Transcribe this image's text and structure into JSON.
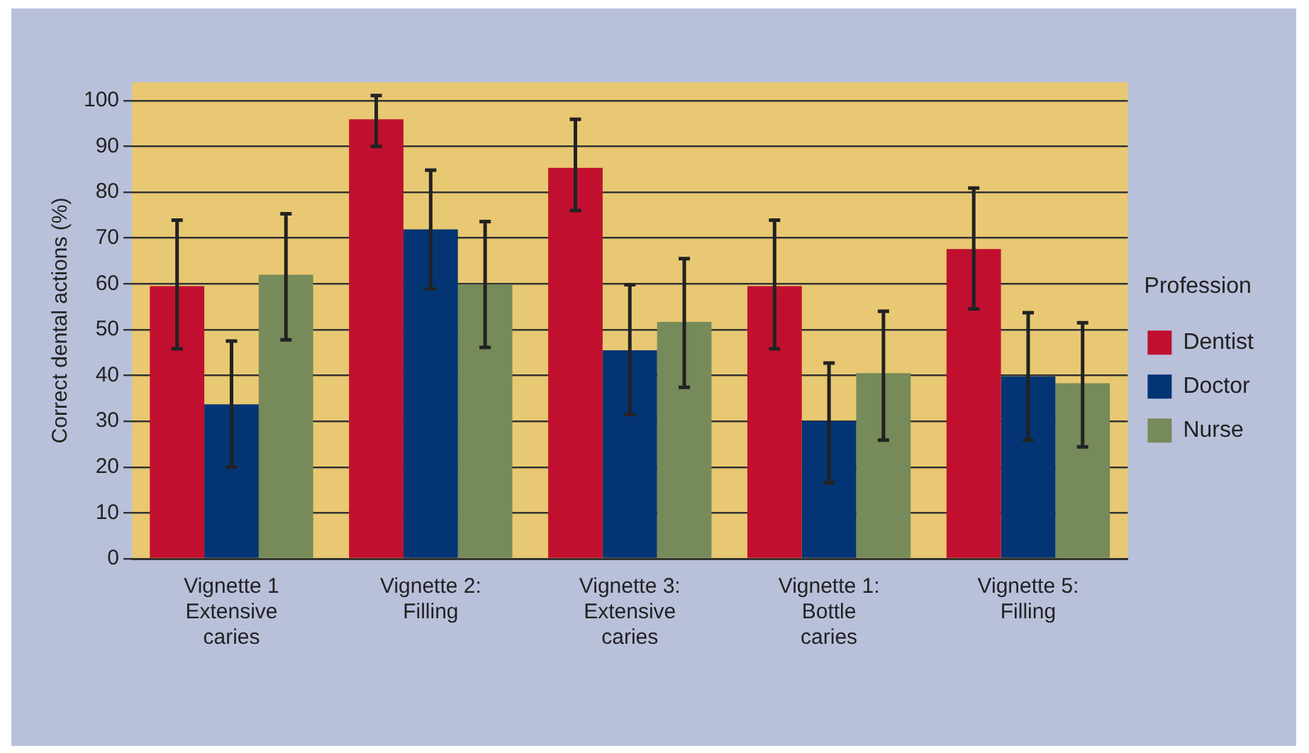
{
  "chart_data": {
    "type": "bar",
    "ylabel": "Correct dental actions (%)",
    "legend_title": "Profession",
    "categories": [
      "Vignette 1\nExtensive\ncaries",
      "Vignette 2:\nFilling",
      "Vignette 3:\nExtensive\ncaries",
      "Vignette 1:\nBottle\ncaries",
      "Vignette 5:\nFilling"
    ],
    "series": [
      {
        "name": "Dentist",
        "color": "#c1102f",
        "values": [
          59.5,
          95.9,
          85.3,
          59.5,
          67.6
        ],
        "errors": [
          [
            45.8,
            73.9
          ],
          [
            90,
            101.1
          ],
          [
            76,
            95.9
          ],
          [
            45.8,
            73.9
          ],
          [
            54.5,
            80.9
          ]
        ]
      },
      {
        "name": "Doctor",
        "color": "#033574",
        "values": [
          33.7,
          71.9,
          45.5,
          30,
          39.8
        ],
        "errors": [
          [
            20,
            47.5
          ],
          [
            58.9,
            84.8
          ],
          [
            31.5,
            59.8
          ],
          [
            16.6,
            42.7
          ],
          [
            25.9,
            53.7
          ]
        ]
      },
      {
        "name": "Nurse",
        "color": "#778a5a",
        "values": [
          62,
          59.9,
          51.7,
          40.5,
          38.3
        ],
        "errors": [
          [
            47.8,
            75.3
          ],
          [
            46.1,
            73.6
          ],
          [
            37.4,
            65.5
          ],
          [
            25.9,
            54
          ],
          [
            24.4,
            51.5
          ]
        ]
      }
    ],
    "ylim": [
      0,
      104
    ],
    "yticks": [
      0,
      10,
      20,
      30,
      40,
      50,
      60,
      70,
      80,
      90,
      100
    ],
    "grid": "y",
    "legend": "right"
  }
}
